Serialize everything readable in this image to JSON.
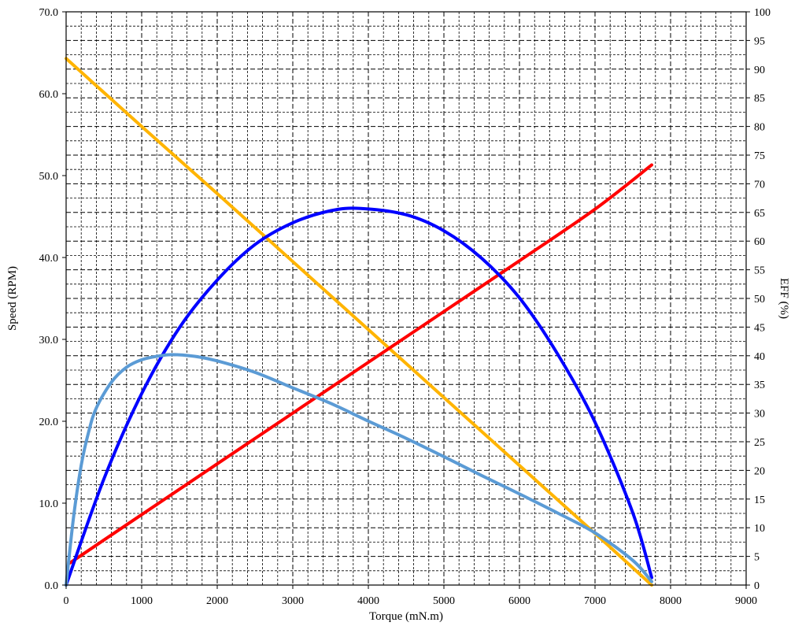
{
  "chart_data": {
    "type": "line",
    "xlabel": "Torque (mN.m)",
    "ylabel": "Speed (RPM)",
    "y2label": "EFF (%)",
    "xlim": [
      0,
      9000
    ],
    "ylim": [
      0,
      70
    ],
    "y2lim": [
      0,
      100
    ],
    "grid": true,
    "x_ticks": [
      "0",
      "1000",
      "2000",
      "3000",
      "4000",
      "5000",
      "6000",
      "7000",
      "8000",
      "9000"
    ],
    "y_ticks": [
      "0.0",
      "10.0",
      "20.0",
      "30.0",
      "40.0",
      "50.0",
      "60.0",
      "70.0"
    ],
    "y2_ticks": [
      "0",
      "5",
      "10",
      "15",
      "20",
      "25",
      "30",
      "35",
      "40",
      "45",
      "50",
      "55",
      "60",
      "65",
      "70",
      "75",
      "80",
      "85",
      "90",
      "95",
      "100"
    ],
    "series": [
      {
        "color": "#ffb400",
        "axis": "left",
        "x": [
          0,
          1000,
          2000,
          3000,
          4000,
          5000,
          6000,
          7000,
          7750
        ],
        "y": [
          64.3,
          56.0,
          47.8,
          39.5,
          31.2,
          22.9,
          14.6,
          6.3,
          0.0
        ]
      },
      {
        "color": "#ff0000",
        "axis": "left",
        "x": [
          50,
          1000,
          2000,
          3000,
          4000,
          5000,
          6000,
          7000,
          7750
        ],
        "y": [
          2.7,
          8.6,
          14.8,
          21.0,
          27.2,
          33.4,
          39.6,
          45.9,
          51.3
        ]
      },
      {
        "color": "#0000ff",
        "axis": "right",
        "x": [
          0,
          500,
          1000,
          1500,
          2000,
          2500,
          3000,
          3500,
          3900,
          4500,
          5000,
          5500,
          6000,
          6500,
          7000,
          7500,
          7750
        ],
        "y": [
          0.0,
          18.5,
          33.4,
          44.9,
          53.2,
          59.4,
          63.2,
          65.3,
          65.7,
          64.6,
          61.8,
          57.0,
          50.1,
          40.4,
          28.4,
          12.6,
          1.3
        ]
      },
      {
        "color": "#5b9bd5",
        "axis": "right",
        "x": [
          0,
          100,
          200,
          300,
          400,
          600,
          800,
          1000,
          1200,
          1400,
          1700,
          2000,
          2500,
          3000,
          3500,
          4000,
          4500,
          5000,
          5500,
          6000,
          6500,
          7000,
          7500,
          7750
        ],
        "y": [
          0.0,
          12.0,
          20.9,
          26.8,
          30.9,
          35.4,
          38.0,
          39.3,
          39.9,
          40.2,
          39.9,
          39.1,
          37.1,
          34.4,
          31.7,
          28.6,
          25.6,
          22.4,
          19.1,
          15.9,
          12.6,
          9.1,
          4.3,
          0.6
        ]
      }
    ]
  }
}
